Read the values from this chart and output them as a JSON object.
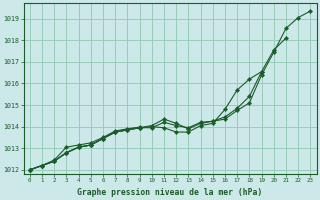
{
  "title": "Graphe pression niveau de la mer (hPa)",
  "bg_color": "#cce8e8",
  "grid_color": "#99ccbb",
  "line_color": "#1a5c2a",
  "xlim": [
    -0.5,
    23.5
  ],
  "ylim": [
    1011.8,
    1019.7
  ],
  "xticks": [
    0,
    1,
    2,
    3,
    4,
    5,
    6,
    7,
    8,
    9,
    10,
    11,
    12,
    13,
    14,
    15,
    16,
    17,
    18,
    19,
    20,
    21,
    22,
    23
  ],
  "yticks": [
    1012,
    1013,
    1014,
    1015,
    1016,
    1017,
    1018,
    1019
  ],
  "series": [
    {
      "data": [
        [
          0,
          1012.0
        ],
        [
          1,
          1012.2
        ],
        [
          2,
          1012.4
        ],
        [
          3,
          1012.8
        ],
        [
          4,
          1013.05
        ],
        [
          5,
          1013.15
        ],
        [
          6,
          1013.45
        ],
        [
          7,
          1013.75
        ],
        [
          8,
          1013.85
        ],
        [
          9,
          1013.95
        ],
        [
          10,
          1014.05
        ],
        [
          11,
          1014.35
        ],
        [
          12,
          1014.15
        ],
        [
          13,
          1013.9
        ],
        [
          14,
          1014.15
        ],
        [
          15,
          1014.25
        ],
        [
          16,
          1014.35
        ],
        [
          17,
          1014.75
        ],
        [
          18,
          1015.1
        ],
        [
          19,
          1016.4
        ],
        [
          20,
          1017.45
        ],
        [
          21,
          1018.55
        ],
        [
          22,
          1019.05
        ],
        [
          23,
          1019.35
        ]
      ],
      "marker": true
    },
    {
      "data": [
        [
          0,
          1012.0
        ],
        [
          1,
          1012.2
        ],
        [
          2,
          1012.4
        ],
        [
          3,
          1012.8
        ],
        [
          4,
          1013.05
        ],
        [
          5,
          1013.15
        ],
        [
          6,
          1013.45
        ],
        [
          7,
          1013.75
        ],
        [
          8,
          1013.85
        ],
        [
          9,
          1013.95
        ],
        [
          10,
          1014.0
        ],
        [
          11,
          1013.95
        ],
        [
          12,
          1013.75
        ],
        [
          13,
          1013.75
        ],
        [
          14,
          1014.05
        ],
        [
          15,
          1014.15
        ],
        [
          16,
          1014.8
        ],
        [
          17,
          1015.7
        ],
        [
          18,
          1016.2
        ],
        [
          19,
          1016.55
        ],
        [
          20,
          1017.55
        ],
        [
          21,
          1018.1
        ]
      ],
      "marker": true
    },
    {
      "data": [
        [
          0,
          1012.0
        ],
        [
          1,
          1012.2
        ],
        [
          2,
          1012.4
        ],
        [
          3,
          1012.78
        ],
        [
          4,
          1013.05
        ],
        [
          5,
          1013.15
        ],
        [
          6,
          1013.45
        ],
        [
          7,
          1013.75
        ],
        [
          8,
          1013.85
        ],
        [
          9,
          1013.95
        ],
        [
          10,
          1013.95
        ],
        [
          11,
          1014.2
        ],
        [
          12,
          1014.05
        ],
        [
          13,
          1013.95
        ],
        [
          14,
          1014.2
        ],
        [
          15,
          1014.25
        ],
        [
          16,
          1014.45
        ],
        [
          17,
          1014.85
        ],
        [
          18,
          1015.4
        ],
        [
          19,
          1016.55
        ]
      ],
      "marker": true
    },
    {
      "data": [
        [
          0,
          1012.0
        ],
        [
          1,
          1012.2
        ],
        [
          2,
          1012.45
        ],
        [
          3,
          1013.05
        ],
        [
          4,
          1013.15
        ],
        [
          5,
          1013.25
        ],
        [
          6,
          1013.5
        ],
        [
          7,
          1013.8
        ],
        [
          8,
          1013.9
        ],
        [
          9,
          1013.98
        ]
      ],
      "marker": true
    }
  ]
}
